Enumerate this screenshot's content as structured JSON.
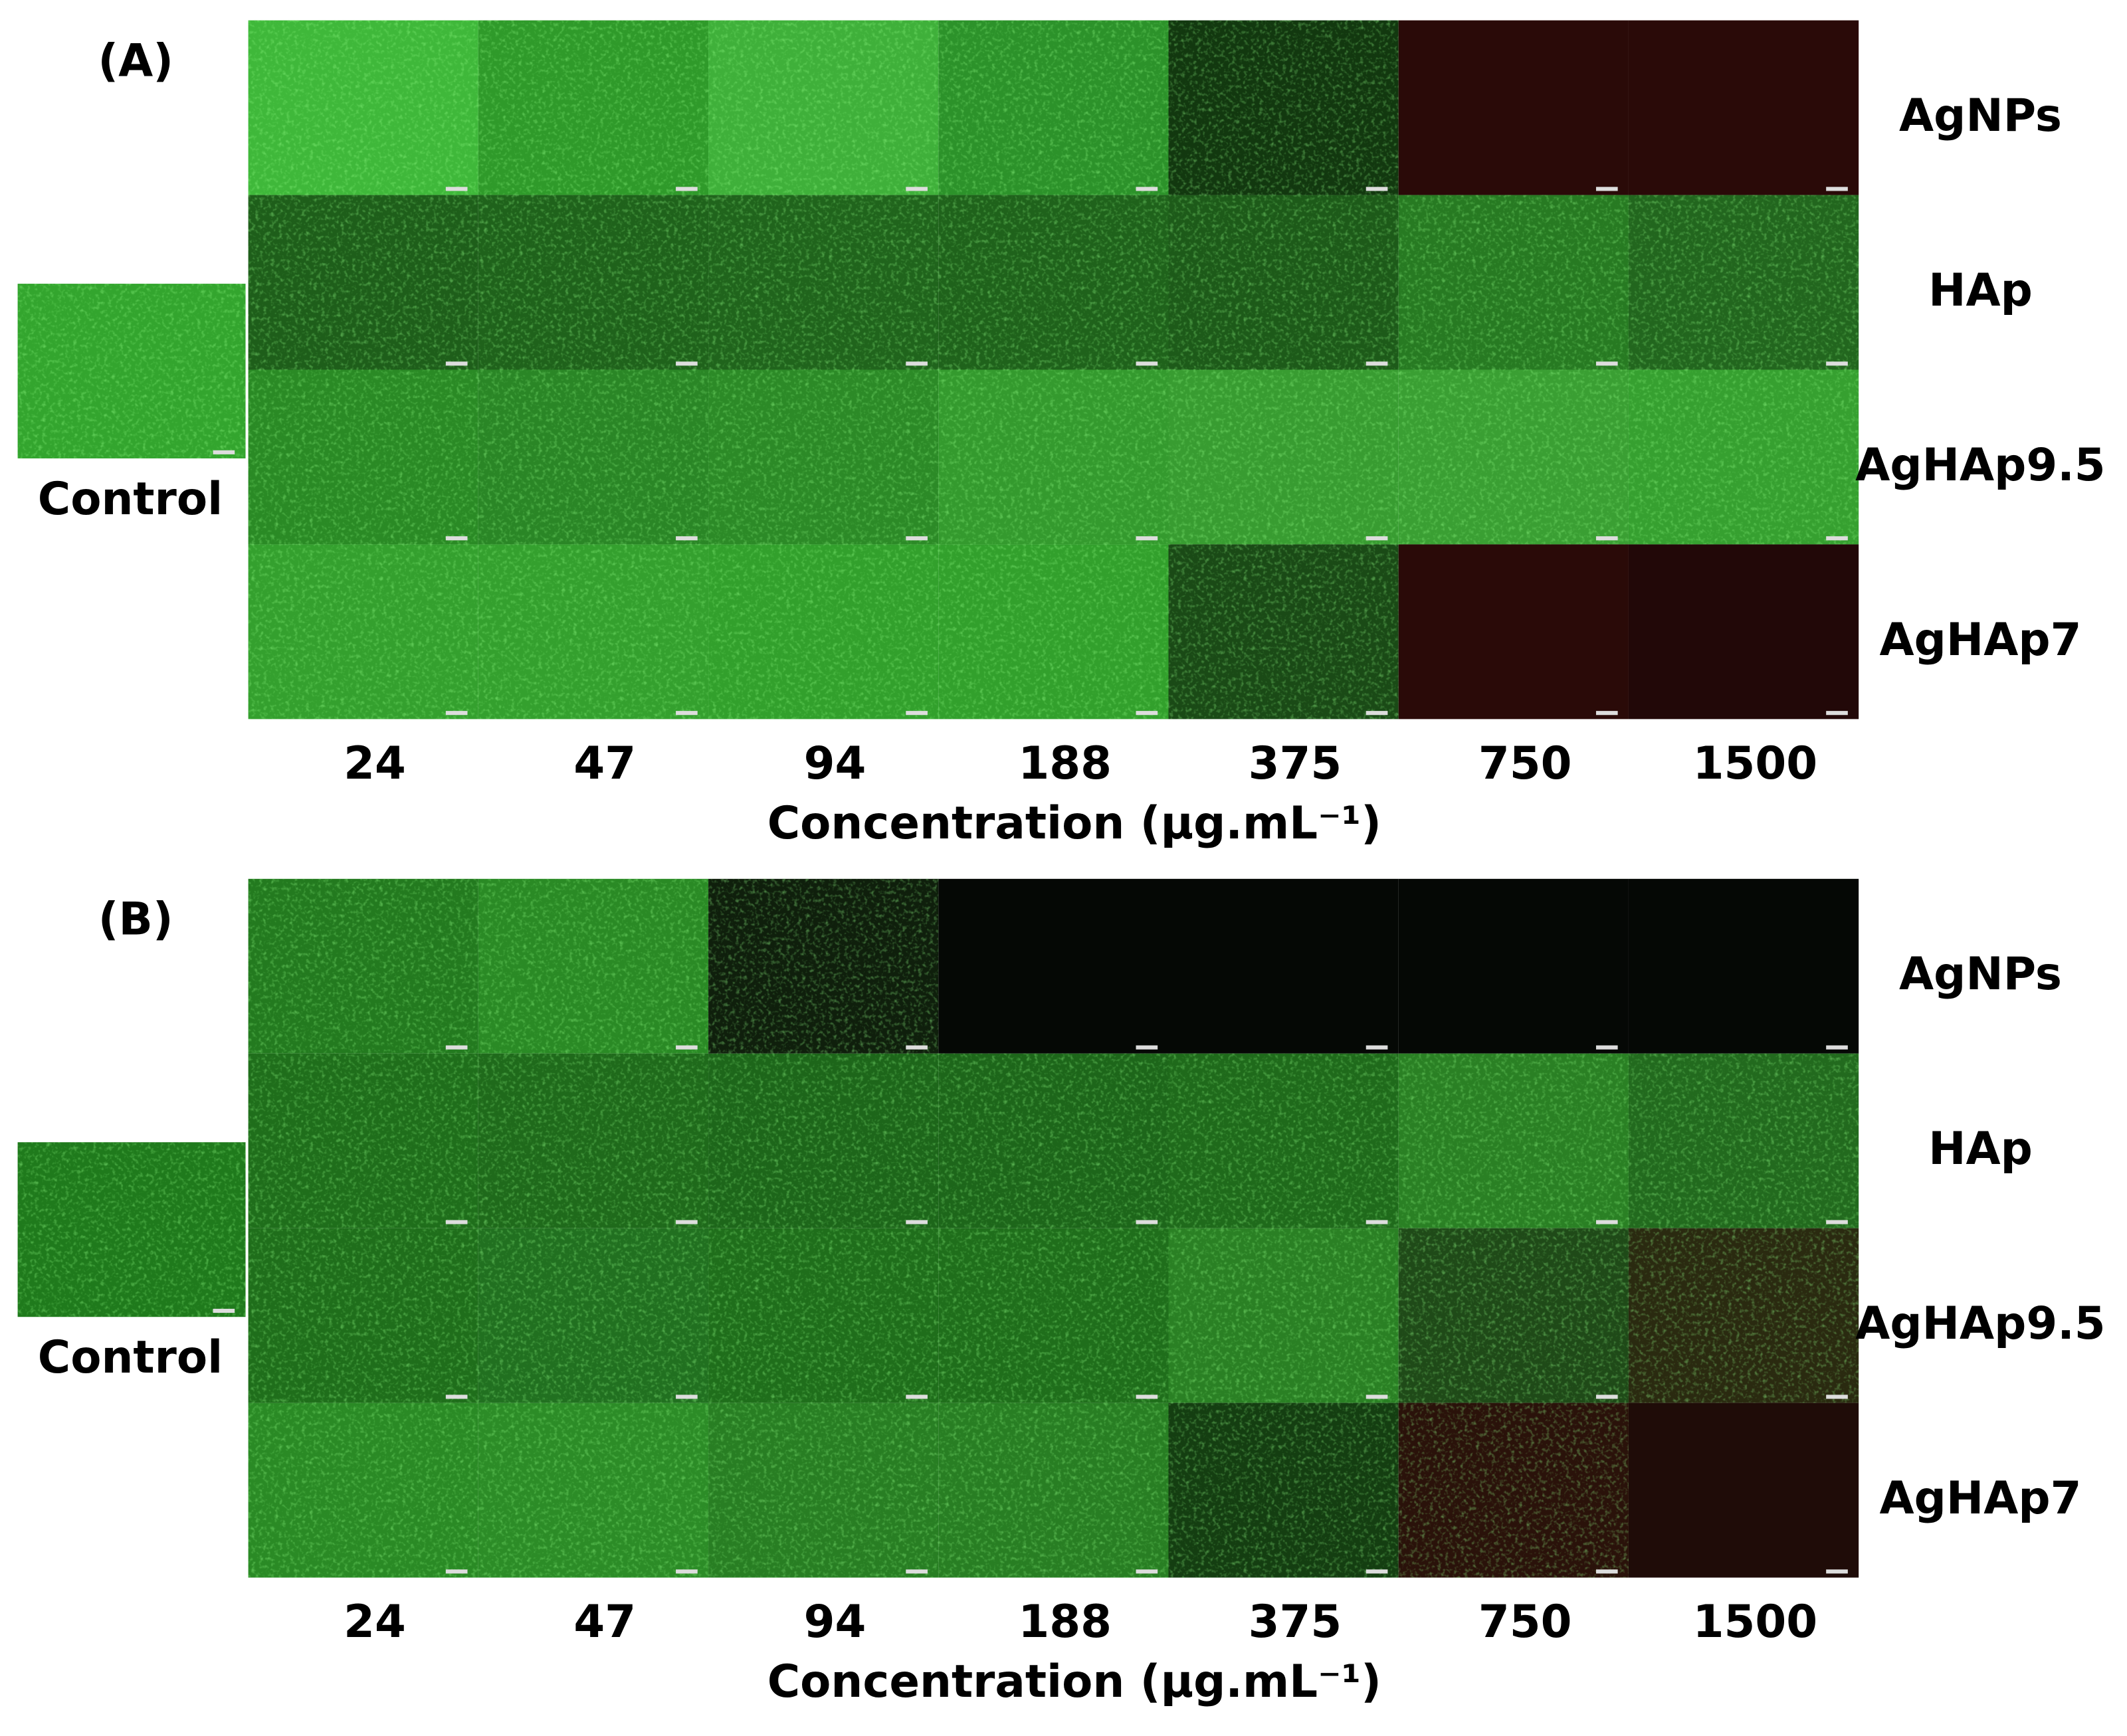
{
  "panels": [
    {
      "label": "(A)",
      "control": "Control",
      "rows": [
        "AgNPs",
        "HAp",
        "AgHAp9.5",
        "AgHAp7"
      ],
      "concentrations": [
        "24",
        "47",
        "94",
        "188",
        "375",
        "750",
        "1500"
      ],
      "axis_label": "Concentration (μg.mL⁻¹)"
    },
    {
      "label": "(B)",
      "control": "Control",
      "rows": [
        "AgNPs",
        "HAp",
        "AgHAp9.5",
        "AgHAp7"
      ],
      "concentrations": [
        "24",
        "47",
        "94",
        "188",
        "375",
        "750",
        "1500"
      ],
      "axis_label": "Concentration (μg.mL⁻¹)"
    }
  ]
}
